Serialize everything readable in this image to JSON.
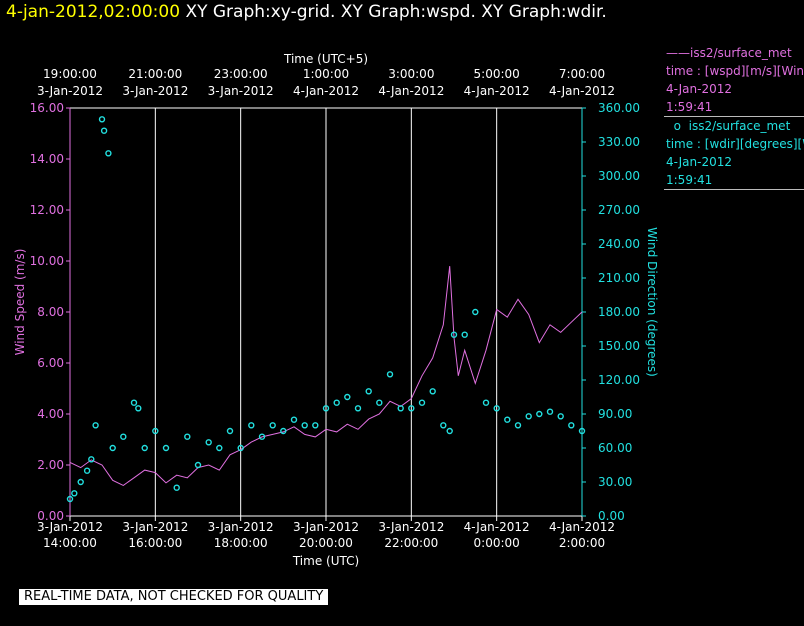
{
  "header": {
    "datetime": "4-jan-2012,02:00:00",
    "graphs": "XY Graph:xy-grid.  XY Graph:wspd.  XY Graph:wdir."
  },
  "legend": {
    "wspd": {
      "name": "iss2/surface_met",
      "label": "time : [wspd][m/s][Wind",
      "date": "4-Jan-2012",
      "time": "1:59:41",
      "color": "#e070e0"
    },
    "wdir": {
      "name": "iss2/surface_met",
      "label": "time : [wdir][degrees][W",
      "date": "4-Jan-2012",
      "time": "1:59:41",
      "color": "#22e0e0"
    }
  },
  "notice": "REAL-TIME DATA, NOT CHECKED FOR QUALITY",
  "chart_data": {
    "type": "line",
    "grid": "vertical",
    "x_bottom": {
      "label": "Time (UTC)",
      "ticks": [
        {
          "date": "3-Jan-2012",
          "time": "14:00:00"
        },
        {
          "date": "3-Jan-2012",
          "time": "16:00:00"
        },
        {
          "date": "3-Jan-2012",
          "time": "18:00:00"
        },
        {
          "date": "3-Jan-2012",
          "time": "20:00:00"
        },
        {
          "date": "3-Jan-2012",
          "time": "22:00:00"
        },
        {
          "date": "4-Jan-2012",
          "time": "0:00:00"
        },
        {
          "date": "4-Jan-2012",
          "time": "2:00:00"
        }
      ]
    },
    "x_top": {
      "label": "Time (UTC+5)",
      "ticks": [
        {
          "date": "3-Jan-2012",
          "time": "19:00:00"
        },
        {
          "date": "3-Jan-2012",
          "time": "21:00:00"
        },
        {
          "date": "3-Jan-2012",
          "time": "23:00:00"
        },
        {
          "date": "4-Jan-2012",
          "time": "1:00:00"
        },
        {
          "date": "4-Jan-2012",
          "time": "3:00:00"
        },
        {
          "date": "4-Jan-2012",
          "time": "5:00:00"
        },
        {
          "date": "4-Jan-2012",
          "time": "7:00:00"
        }
      ]
    },
    "y_left": {
      "label": "Wind Speed (m/s)",
      "ylim": [
        0,
        16
      ],
      "ticks": [
        "0.00",
        "2.00",
        "4.00",
        "6.00",
        "8.00",
        "10.00",
        "12.00",
        "14.00",
        "16.00"
      ]
    },
    "y_right": {
      "label": "Wind Direction (degrees)",
      "ylim": [
        0,
        360
      ],
      "ticks": [
        "0.00",
        "30.00",
        "60.00",
        "90.00",
        "120.00",
        "150.00",
        "180.00",
        "210.00",
        "240.00",
        "270.00",
        "300.00",
        "330.00",
        "360.00"
      ]
    },
    "series": [
      {
        "name": "iss2/surface_met",
        "axis": "left",
        "style": "line",
        "x_hours_utc": [
          14.0,
          14.25,
          14.5,
          14.75,
          15.0,
          15.25,
          15.5,
          15.75,
          16.0,
          16.25,
          16.5,
          16.75,
          17.0,
          17.25,
          17.5,
          17.75,
          18.0,
          18.25,
          18.5,
          18.75,
          19.0,
          19.25,
          19.5,
          19.75,
          20.0,
          20.25,
          20.5,
          20.75,
          21.0,
          21.25,
          21.5,
          21.75,
          22.0,
          22.25,
          22.5,
          22.75,
          22.9,
          23.0,
          23.1,
          23.25,
          23.5,
          23.75,
          24.0,
          24.25,
          24.5,
          24.75,
          25.0,
          25.25,
          25.5,
          25.75,
          26.0
        ],
        "values": [
          2.1,
          1.9,
          2.2,
          2.0,
          1.4,
          1.2,
          1.5,
          1.8,
          1.7,
          1.3,
          1.6,
          1.5,
          1.9,
          2.0,
          1.8,
          2.4,
          2.6,
          2.9,
          3.1,
          3.2,
          3.3,
          3.5,
          3.2,
          3.1,
          3.4,
          3.3,
          3.6,
          3.4,
          3.8,
          4.0,
          4.5,
          4.3,
          4.6,
          5.5,
          6.2,
          7.5,
          9.8,
          7.0,
          5.5,
          6.5,
          5.2,
          6.5,
          8.1,
          7.8,
          8.5,
          7.9,
          6.8,
          7.5,
          7.2,
          7.6,
          8.0
        ]
      },
      {
        "name": "iss2/surface_met",
        "axis": "right",
        "style": "points",
        "x_hours_utc": [
          14.0,
          14.1,
          14.25,
          14.4,
          14.5,
          14.6,
          14.75,
          14.8,
          14.9,
          15.0,
          15.25,
          15.5,
          15.6,
          15.75,
          16.0,
          16.25,
          16.5,
          16.75,
          17.0,
          17.25,
          17.5,
          17.75,
          18.0,
          18.25,
          18.5,
          18.75,
          19.0,
          19.25,
          19.5,
          19.75,
          20.0,
          20.25,
          20.5,
          20.75,
          21.0,
          21.25,
          21.5,
          21.75,
          22.0,
          22.25,
          22.5,
          22.75,
          22.9,
          23.0,
          23.25,
          23.5,
          23.75,
          24.0,
          24.25,
          24.5,
          24.75,
          25.0,
          25.25,
          25.5,
          25.75,
          26.0
        ],
        "values": [
          15,
          20,
          30,
          40,
          50,
          80,
          350,
          340,
          320,
          60,
          70,
          100,
          95,
          60,
          75,
          60,
          25,
          70,
          45,
          65,
          60,
          75,
          60,
          80,
          70,
          80,
          75,
          85,
          80,
          80,
          95,
          100,
          105,
          95,
          110,
          100,
          125,
          95,
          95,
          100,
          110,
          80,
          75,
          160,
          160,
          180,
          100,
          95,
          85,
          80,
          88,
          90,
          92,
          88,
          80,
          75
        ]
      }
    ]
  }
}
